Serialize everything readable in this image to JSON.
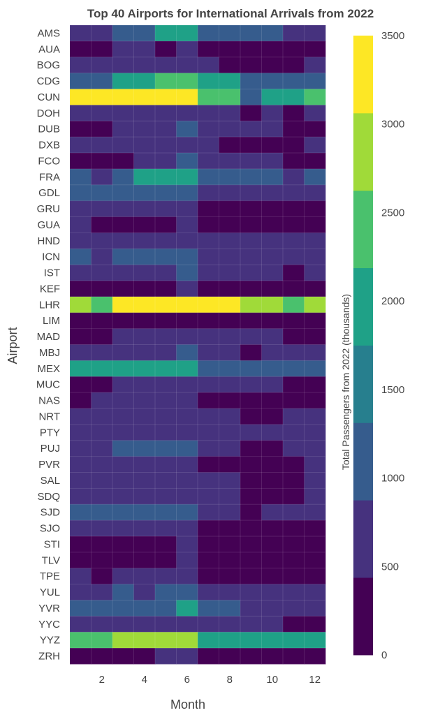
{
  "chart_data": {
    "type": "heatmap",
    "title": "Top 40 Airports for International Arrivals from 2022",
    "xlabel": "Month",
    "ylabel": "Airport",
    "colorbar_title": "Total Passengers from 2022 (thousands)",
    "x": [
      1,
      2,
      3,
      4,
      5,
      6,
      7,
      8,
      9,
      10,
      11,
      12
    ],
    "x_ticks": [
      2,
      4,
      6,
      8,
      10,
      12
    ],
    "colorbar_ticks": [
      0,
      500,
      1000,
      1500,
      2000,
      2500,
      3000,
      3500
    ],
    "zlim": [
      0,
      3500
    ],
    "colorscale": [
      "#440154",
      "#46327e",
      "#365c8d",
      "#277f8e",
      "#1fa187",
      "#4ac16d",
      "#a0da39",
      "#fde725"
    ],
    "categories": [
      "AMS",
      "AUA",
      "BOG",
      "CDG",
      "CUN",
      "DOH",
      "DUB",
      "DXB",
      "FCO",
      "FRA",
      "GDL",
      "GRU",
      "GUA",
      "HND",
      "ICN",
      "IST",
      "KEF",
      "LHR",
      "LIM",
      "MAD",
      "MBJ",
      "MEX",
      "MUC",
      "NAS",
      "NRT",
      "PTY",
      "PUJ",
      "PVR",
      "SAL",
      "SDQ",
      "SJD",
      "SJO",
      "STI",
      "TLV",
      "TPE",
      "YUL",
      "YVR",
      "YYC",
      "YYZ",
      "ZRH"
    ],
    "values": [
      [
        750,
        750,
        1250,
        1250,
        1750,
        1750,
        1250,
        1250,
        1250,
        1250,
        750,
        750
      ],
      [
        250,
        250,
        750,
        750,
        250,
        750,
        250,
        250,
        250,
        250,
        250,
        250
      ],
      [
        750,
        750,
        750,
        750,
        750,
        750,
        750,
        250,
        250,
        250,
        250,
        750
      ],
      [
        1250,
        1250,
        1750,
        1750,
        2250,
        2250,
        1750,
        1750,
        1250,
        1250,
        1250,
        1250
      ],
      [
        3250,
        3250,
        3250,
        3250,
        3250,
        3250,
        2250,
        2250,
        1250,
        1750,
        1750,
        2250
      ],
      [
        750,
        750,
        750,
        750,
        750,
        750,
        750,
        750,
        250,
        750,
        250,
        750
      ],
      [
        250,
        250,
        750,
        750,
        750,
        1250,
        750,
        750,
        750,
        750,
        250,
        250
      ],
      [
        750,
        750,
        750,
        750,
        750,
        750,
        750,
        250,
        250,
        250,
        250,
        750
      ],
      [
        250,
        250,
        250,
        750,
        750,
        1250,
        750,
        750,
        750,
        750,
        250,
        250
      ],
      [
        1250,
        750,
        1250,
        1750,
        1750,
        1750,
        1250,
        1250,
        1250,
        1250,
        750,
        1250
      ],
      [
        1250,
        1250,
        1250,
        1250,
        1250,
        1250,
        750,
        750,
        750,
        750,
        750,
        750
      ],
      [
        750,
        750,
        750,
        750,
        750,
        750,
        250,
        250,
        250,
        250,
        250,
        250
      ],
      [
        750,
        250,
        250,
        250,
        250,
        750,
        250,
        250,
        250,
        250,
        250,
        250
      ],
      [
        750,
        750,
        750,
        750,
        750,
        750,
        750,
        750,
        750,
        750,
        750,
        750
      ],
      [
        1250,
        750,
        1250,
        1250,
        1250,
        1250,
        750,
        750,
        750,
        750,
        750,
        750
      ],
      [
        750,
        750,
        750,
        750,
        750,
        1250,
        750,
        750,
        750,
        750,
        250,
        750
      ],
      [
        250,
        250,
        250,
        250,
        250,
        750,
        250,
        250,
        250,
        250,
        250,
        250
      ],
      [
        2750,
        2250,
        3250,
        3250,
        3250,
        3250,
        3250,
        3250,
        2750,
        2750,
        2250,
        2750
      ],
      [
        250,
        250,
        250,
        250,
        250,
        250,
        250,
        250,
        250,
        250,
        250,
        250
      ],
      [
        250,
        250,
        750,
        750,
        750,
        750,
        750,
        750,
        750,
        750,
        250,
        250
      ],
      [
        750,
        750,
        750,
        750,
        750,
        1250,
        750,
        750,
        250,
        750,
        750,
        750
      ],
      [
        1750,
        1750,
        1750,
        1750,
        1750,
        1750,
        1250,
        1250,
        1250,
        1250,
        1250,
        1250
      ],
      [
        250,
        250,
        750,
        750,
        750,
        750,
        750,
        750,
        750,
        750,
        250,
        250
      ],
      [
        250,
        750,
        750,
        750,
        750,
        750,
        250,
        250,
        250,
        250,
        250,
        250
      ],
      [
        750,
        750,
        750,
        750,
        750,
        750,
        750,
        750,
        250,
        250,
        750,
        750
      ],
      [
        750,
        750,
        750,
        750,
        750,
        750,
        750,
        750,
        750,
        750,
        750,
        750
      ],
      [
        750,
        750,
        1250,
        1250,
        1250,
        1250,
        750,
        750,
        250,
        250,
        750,
        750
      ],
      [
        750,
        750,
        750,
        750,
        750,
        750,
        250,
        250,
        250,
        250,
        250,
        750
      ],
      [
        750,
        750,
        750,
        750,
        750,
        750,
        750,
        750,
        250,
        250,
        250,
        750
      ],
      [
        750,
        750,
        750,
        750,
        750,
        750,
        750,
        750,
        250,
        250,
        250,
        750
      ],
      [
        1250,
        1250,
        1250,
        1250,
        1250,
        1250,
        750,
        750,
        250,
        750,
        750,
        750
      ],
      [
        750,
        750,
        750,
        750,
        750,
        750,
        250,
        250,
        250,
        250,
        250,
        250
      ],
      [
        250,
        250,
        250,
        250,
        250,
        750,
        250,
        250,
        250,
        250,
        250,
        250
      ],
      [
        250,
        250,
        250,
        250,
        250,
        750,
        250,
        250,
        250,
        250,
        250,
        250
      ],
      [
        750,
        250,
        750,
        750,
        750,
        750,
        250,
        250,
        250,
        250,
        250,
        250
      ],
      [
        750,
        750,
        1250,
        750,
        1250,
        1250,
        750,
        750,
        750,
        750,
        750,
        750
      ],
      [
        1250,
        1250,
        1250,
        1250,
        1250,
        1750,
        1250,
        1250,
        750,
        750,
        750,
        750
      ],
      [
        750,
        750,
        750,
        750,
        750,
        750,
        750,
        750,
        750,
        750,
        250,
        250
      ],
      [
        2250,
        2250,
        2750,
        2750,
        2750,
        2750,
        1750,
        1750,
        1750,
        1750,
        1750,
        1750
      ],
      [
        250,
        250,
        250,
        250,
        750,
        750,
        250,
        250,
        250,
        250,
        250,
        250
      ]
    ]
  }
}
